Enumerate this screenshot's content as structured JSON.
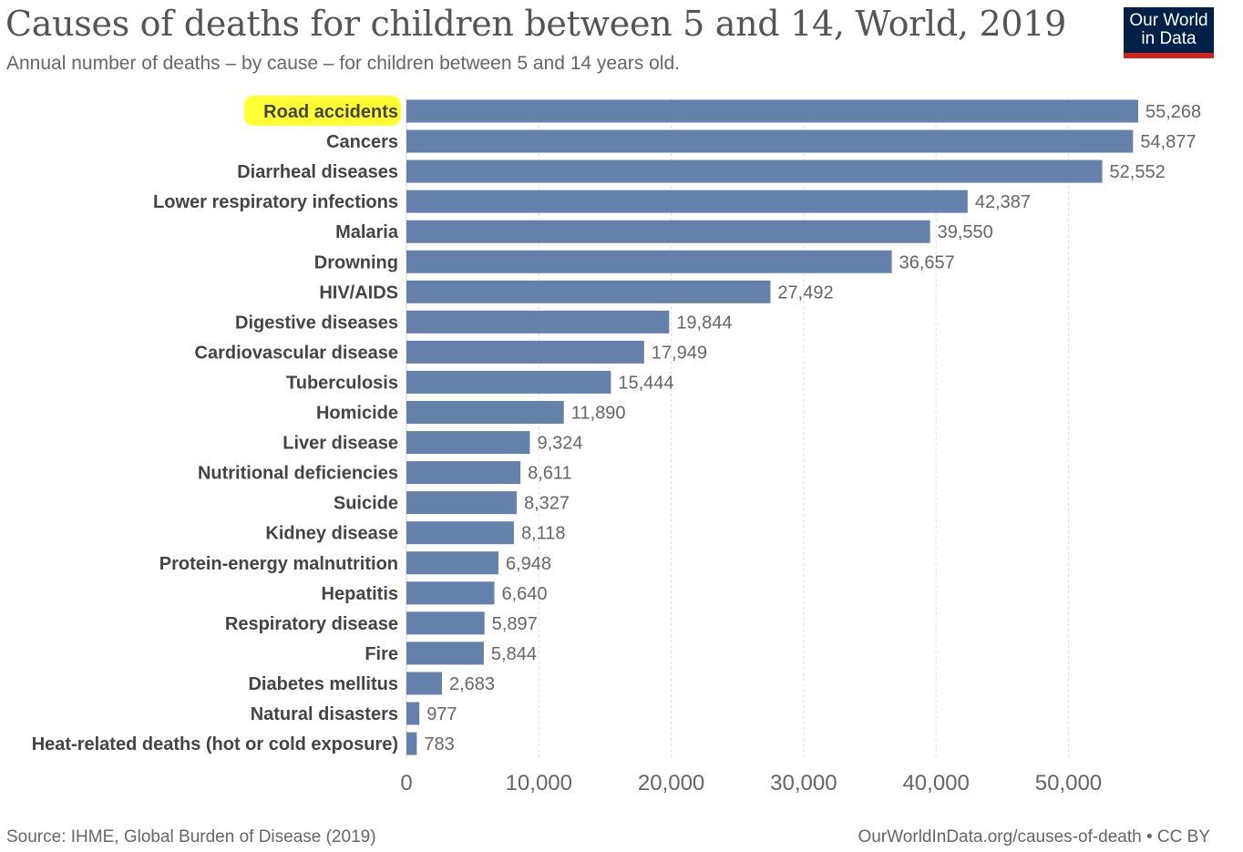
{
  "header": {
    "title": "Causes of deaths for children between 5 and 14, World, 2019",
    "subtitle": "Annual number of deaths – by cause – for children between 5 and 14 years old."
  },
  "logo": {
    "line1": "Our World",
    "line2": "in Data"
  },
  "footer": {
    "source": "Source: IHME, Global Burden of Disease (2019)",
    "credit": "OurWorldInData.org/causes-of-death • CC BY"
  },
  "colors": {
    "bar": "#6680ac",
    "highlight": "#ffff33",
    "logo_bg": "#002147",
    "logo_accent": "#ce261e"
  },
  "chart_data": {
    "type": "bar",
    "orientation": "horizontal",
    "highlighted_category": "Road accidents",
    "categories": [
      "Road accidents",
      "Cancers",
      "Diarrheal diseases",
      "Lower respiratory infections",
      "Malaria",
      "Drowning",
      "HIV/AIDS",
      "Digestive diseases",
      "Cardiovascular disease",
      "Tuberculosis",
      "Homicide",
      "Liver disease",
      "Nutritional deficiencies",
      "Suicide",
      "Kidney disease",
      "Protein-energy malnutrition",
      "Hepatitis",
      "Respiratory disease",
      "Fire",
      "Diabetes mellitus",
      "Natural disasters",
      "Heat-related deaths (hot or cold exposure)"
    ],
    "values": [
      55268,
      54877,
      52552,
      42387,
      39550,
      36657,
      27492,
      19844,
      17949,
      15444,
      11890,
      9324,
      8611,
      8327,
      8118,
      6948,
      6640,
      5897,
      5844,
      2683,
      977,
      783
    ],
    "value_labels": [
      "55,268",
      "54,877",
      "52,552",
      "42,387",
      "39,550",
      "36,657",
      "27,492",
      "19,844",
      "17,949",
      "15,444",
      "11,890",
      "9,324",
      "8,611",
      "8,327",
      "8,118",
      "6,948",
      "6,640",
      "5,897",
      "5,844",
      "2,683",
      "977",
      "783"
    ],
    "xlim": [
      0,
      55268
    ],
    "xticks": [
      0,
      10000,
      20000,
      30000,
      40000,
      50000
    ],
    "xtick_labels": [
      "0",
      "10,000",
      "20,000",
      "30,000",
      "40,000",
      "50,000"
    ],
    "grid": "vertical dashed"
  }
}
